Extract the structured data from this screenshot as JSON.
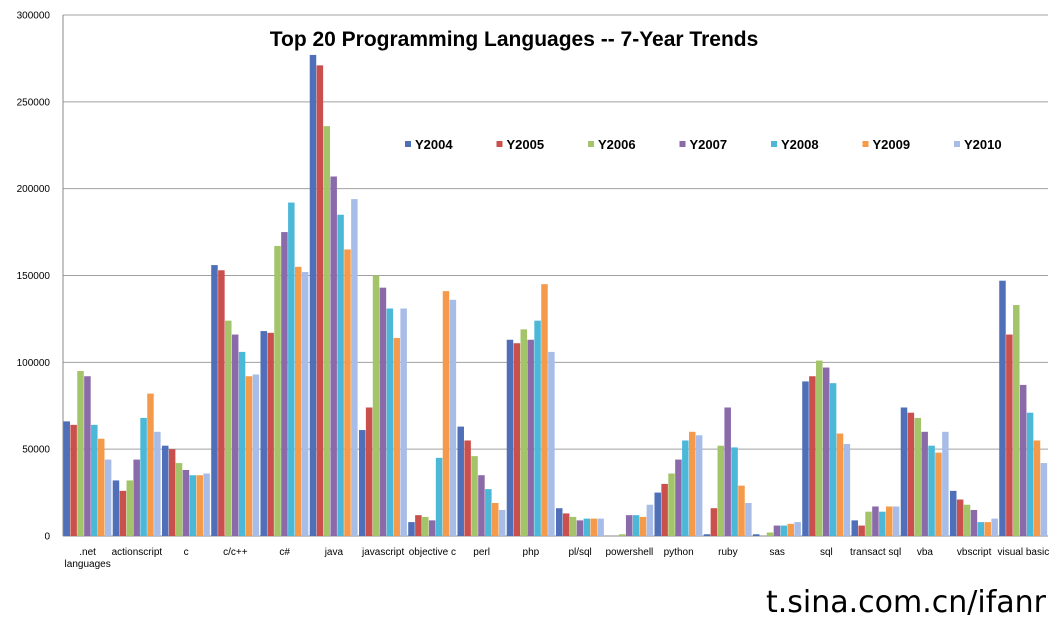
{
  "chart_data": {
    "type": "bar",
    "title": "Top 20 Programming Languages -- 7-Year Trends",
    "xlabel": "",
    "ylabel": "",
    "ylim": [
      0,
      300000
    ],
    "yticks": [
      0,
      50000,
      100000,
      150000,
      200000,
      250000,
      300000
    ],
    "grid": true,
    "legend_position": "top-right",
    "categories": [
      ".net languages",
      "actionscript",
      "c",
      "c/c++",
      "c#",
      "java",
      "javascript",
      "objective c",
      "perl",
      "php",
      "pl/sql",
      "powershell",
      "python",
      "ruby",
      "sas",
      "sql",
      "transact sql",
      "vba",
      "vbscript",
      "visual basic"
    ],
    "series": [
      {
        "name": "Y2004",
        "color": "#4f6fb8",
        "values": [
          66000,
          32000,
          52000,
          156000,
          118000,
          277000,
          61000,
          8000,
          63000,
          113000,
          16000,
          0,
          25000,
          1000,
          1000,
          89000,
          9000,
          74000,
          26000,
          147000
        ]
      },
      {
        "name": "Y2005",
        "color": "#c9504c",
        "values": [
          64000,
          26000,
          50000,
          153000,
          117000,
          271000,
          74000,
          12000,
          55000,
          111000,
          13000,
          0,
          30000,
          16000,
          0,
          92000,
          6000,
          71000,
          21000,
          116000
        ]
      },
      {
        "name": "Y2006",
        "color": "#a4c46a",
        "values": [
          95000,
          32000,
          42000,
          124000,
          167000,
          236000,
          150000,
          11000,
          46000,
          119000,
          11000,
          1000,
          36000,
          52000,
          2000,
          101000,
          14000,
          68000,
          18000,
          133000
        ]
      },
      {
        "name": "Y2007",
        "color": "#8a6aa8",
        "values": [
          92000,
          44000,
          38000,
          116000,
          175000,
          207000,
          143000,
          9000,
          35000,
          113000,
          9000,
          12000,
          44000,
          74000,
          6000,
          97000,
          17000,
          60000,
          15000,
          87000
        ]
      },
      {
        "name": "Y2008",
        "color": "#4bb8d8",
        "values": [
          64000,
          68000,
          35000,
          106000,
          192000,
          185000,
          131000,
          45000,
          27000,
          124000,
          10000,
          12000,
          55000,
          51000,
          6000,
          88000,
          14000,
          52000,
          8000,
          71000
        ]
      },
      {
        "name": "Y2009",
        "color": "#f59a4a",
        "values": [
          56000,
          82000,
          35000,
          92000,
          155000,
          165000,
          114000,
          141000,
          19000,
          145000,
          10000,
          11000,
          60000,
          29000,
          7000,
          59000,
          17000,
          48000,
          8000,
          55000
        ]
      },
      {
        "name": "Y2010",
        "color": "#a7bde8",
        "values": [
          44000,
          60000,
          36000,
          93000,
          152000,
          194000,
          131000,
          136000,
          15000,
          106000,
          10000,
          18000,
          58000,
          19000,
          8000,
          53000,
          17000,
          60000,
          10000,
          42000
        ]
      }
    ]
  },
  "watermark": "t.sina.com.cn/ifanr"
}
